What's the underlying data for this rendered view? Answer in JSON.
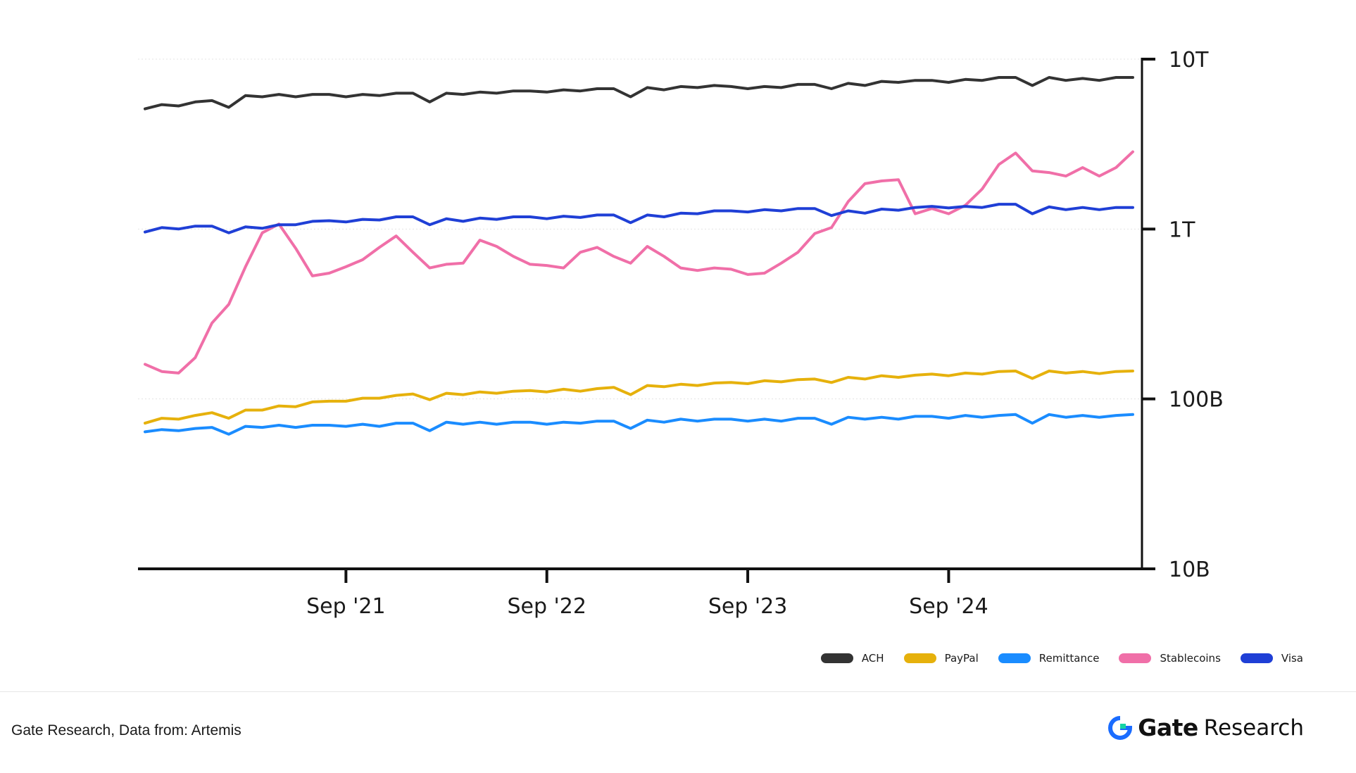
{
  "chart_data": {
    "type": "line",
    "title": "",
    "xlabel": "",
    "ylabel": "",
    "y_scale": "log",
    "y_axis_position": "right",
    "ylim": [
      10000000000,
      10000000000000
    ],
    "yticks": [
      {
        "value": 10000000000000,
        "label": "10T"
      },
      {
        "value": 1000000000000,
        "label": "1T"
      },
      {
        "value": 100000000000,
        "label": "100B"
      },
      {
        "value": 10000000000,
        "label": "10B"
      }
    ],
    "xlim": [
      "2020-09",
      "2025-09"
    ],
    "xticks": [
      {
        "value": "2021-09",
        "label": "Sep '21"
      },
      {
        "value": "2022-09",
        "label": "Sep '22"
      },
      {
        "value": "2023-09",
        "label": "Sep '23"
      },
      {
        "value": "2024-09",
        "label": "Sep '24"
      }
    ],
    "grid": "horizontal dotted",
    "legend_position": "bottom-right",
    "x": [
      "2020-09",
      "2020-10",
      "2020-11",
      "2020-12",
      "2021-01",
      "2021-02",
      "2021-03",
      "2021-04",
      "2021-05",
      "2021-06",
      "2021-07",
      "2021-08",
      "2021-09",
      "2021-10",
      "2021-11",
      "2021-12",
      "2022-01",
      "2022-02",
      "2022-03",
      "2022-04",
      "2022-05",
      "2022-06",
      "2022-07",
      "2022-08",
      "2022-09",
      "2022-10",
      "2022-11",
      "2022-12",
      "2023-01",
      "2023-02",
      "2023-03",
      "2023-04",
      "2023-05",
      "2023-06",
      "2023-07",
      "2023-08",
      "2023-09",
      "2023-10",
      "2023-11",
      "2023-12",
      "2024-01",
      "2024-02",
      "2024-03",
      "2024-04",
      "2024-05",
      "2024-06",
      "2024-07",
      "2024-08",
      "2024-09",
      "2024-10",
      "2024-11",
      "2024-12",
      "2025-01",
      "2025-02",
      "2025-03",
      "2025-04",
      "2025-05",
      "2025-06",
      "2025-07",
      "2025-08"
    ],
    "series": [
      {
        "name": "ACH",
        "color": "#333333",
        "values": [
          5100000000000.0,
          5400000000000.0,
          5300000000000.0,
          5600000000000.0,
          5700000000000.0,
          5200000000000.0,
          6100000000000.0,
          6000000000000.0,
          6200000000000.0,
          6000000000000.0,
          6200000000000.0,
          6200000000000.0,
          6000000000000.0,
          6200000000000.0,
          6100000000000.0,
          6300000000000.0,
          6300000000000.0,
          5600000000000.0,
          6300000000000.0,
          6200000000000.0,
          6400000000000.0,
          6300000000000.0,
          6500000000000.0,
          6500000000000.0,
          6400000000000.0,
          6600000000000.0,
          6500000000000.0,
          6700000000000.0,
          6700000000000.0,
          6000000000000.0,
          6800000000000.0,
          6600000000000.0,
          6900000000000.0,
          6800000000000.0,
          7000000000000.0,
          6900000000000.0,
          6700000000000.0,
          6900000000000.0,
          6800000000000.0,
          7100000000000.0,
          7100000000000.0,
          6700000000000.0,
          7200000000000.0,
          7000000000000.0,
          7400000000000.0,
          7300000000000.0,
          7500000000000.0,
          7500000000000.0,
          7300000000000.0,
          7600000000000.0,
          7500000000000.0,
          7800000000000.0,
          7800000000000.0,
          7000000000000.0,
          7800000000000.0,
          7500000000000.0,
          7700000000000.0,
          7500000000000.0,
          7800000000000.0,
          7800000000000.0
        ]
      },
      {
        "name": "PayPal",
        "color": "#e6b10c",
        "values": [
          72000000000.0,
          77000000000.0,
          76000000000.0,
          80000000000.0,
          83000000000.0,
          77000000000.0,
          86000000000.0,
          86000000000.0,
          91000000000.0,
          90000000000.0,
          96000000000.0,
          97000000000.0,
          97000000000.0,
          101000000000.0,
          101000000000.0,
          105000000000.0,
          107000000000.0,
          99000000000.0,
          108000000000.0,
          106000000000.0,
          110000000000.0,
          108000000000.0,
          111000000000.0,
          112000000000.0,
          110000000000.0,
          114000000000.0,
          111000000000.0,
          115000000000.0,
          117000000000.0,
          106000000000.0,
          120000000000.0,
          118000000000.0,
          122000000000.0,
          120000000000.0,
          124000000000.0,
          125000000000.0,
          123000000000.0,
          128000000000.0,
          126000000000.0,
          130000000000.0,
          131000000000.0,
          125000000000.0,
          134000000000.0,
          131000000000.0,
          137000000000.0,
          134000000000.0,
          138000000000.0,
          140000000000.0,
          137000000000.0,
          142000000000.0,
          140000000000.0,
          145000000000.0,
          146000000000.0,
          132000000000.0,
          146000000000.0,
          142000000000.0,
          145000000000.0,
          141000000000.0,
          145000000000.0,
          146000000000.0
        ]
      },
      {
        "name": "Remittance",
        "color": "#1a8cff",
        "values": [
          64000000000.0,
          66000000000.0,
          65000000000.0,
          67000000000.0,
          68000000000.0,
          62000000000.0,
          69000000000.0,
          68000000000.0,
          70000000000.0,
          68000000000.0,
          70000000000.0,
          70000000000.0,
          69000000000.0,
          71000000000.0,
          69000000000.0,
          72000000000.0,
          72000000000.0,
          65000000000.0,
          73000000000.0,
          71000000000.0,
          73000000000.0,
          71000000000.0,
          73000000000.0,
          73000000000.0,
          71000000000.0,
          73000000000.0,
          72000000000.0,
          74000000000.0,
          74000000000.0,
          67000000000.0,
          75000000000.0,
          73000000000.0,
          76000000000.0,
          74000000000.0,
          76000000000.0,
          76000000000.0,
          74000000000.0,
          76000000000.0,
          74000000000.0,
          77000000000.0,
          77000000000.0,
          71000000000.0,
          78000000000.0,
          76000000000.0,
          78000000000.0,
          76000000000.0,
          79000000000.0,
          79000000000.0,
          77000000000.0,
          80000000000.0,
          78000000000.0,
          80000000000.0,
          81000000000.0,
          72000000000.0,
          81000000000.0,
          78000000000.0,
          80000000000.0,
          78000000000.0,
          80000000000.0,
          81000000000.0
        ]
      },
      {
        "name": "Stablecoins",
        "color": "#f06fa8",
        "values": [
          160000000000.0,
          145000000000.0,
          142000000000.0,
          175000000000.0,
          280000000000.0,
          360000000000.0,
          600000000000.0,
          950000000000.0,
          1070000000000.0,
          770000000000.0,
          530000000000.0,
          550000000000.0,
          600000000000.0,
          660000000000.0,
          780000000000.0,
          910000000000.0,
          730000000000.0,
          590000000000.0,
          620000000000.0,
          630000000000.0,
          860000000000.0,
          790000000000.0,
          690000000000.0,
          620000000000.0,
          610000000000.0,
          590000000000.0,
          730000000000.0,
          780000000000.0,
          690000000000.0,
          630000000000.0,
          790000000000.0,
          690000000000.0,
          590000000000.0,
          570000000000.0,
          590000000000.0,
          580000000000.0,
          540000000000.0,
          550000000000.0,
          630000000000.0,
          730000000000.0,
          940000000000.0,
          1020000000000.0,
          1450000000000.0,
          1850000000000.0,
          1920000000000.0,
          1950000000000.0,
          1230000000000.0,
          1320000000000.0,
          1230000000000.0,
          1380000000000.0,
          1720000000000.0,
          2400000000000.0,
          2800000000000.0,
          2200000000000.0,
          2150000000000.0,
          2050000000000.0,
          2300000000000.0,
          2050000000000.0,
          2300000000000.0,
          2850000000000.0
        ]
      },
      {
        "name": "Visa",
        "color": "#1f3fd6",
        "values": [
          960000000000.0,
          1020000000000.0,
          1000000000000.0,
          1040000000000.0,
          1040000000000.0,
          950000000000.0,
          1030000000000.0,
          1010000000000.0,
          1060000000000.0,
          1060000000000.0,
          1110000000000.0,
          1120000000000.0,
          1100000000000.0,
          1140000000000.0,
          1130000000000.0,
          1180000000000.0,
          1180000000000.0,
          1060000000000.0,
          1150000000000.0,
          1110000000000.0,
          1160000000000.0,
          1140000000000.0,
          1180000000000.0,
          1180000000000.0,
          1150000000000.0,
          1190000000000.0,
          1170000000000.0,
          1210000000000.0,
          1210000000000.0,
          1090000000000.0,
          1210000000000.0,
          1180000000000.0,
          1240000000000.0,
          1230000000000.0,
          1280000000000.0,
          1280000000000.0,
          1260000000000.0,
          1300000000000.0,
          1280000000000.0,
          1320000000000.0,
          1320000000000.0,
          1200000000000.0,
          1280000000000.0,
          1240000000000.0,
          1310000000000.0,
          1290000000000.0,
          1340000000000.0,
          1360000000000.0,
          1330000000000.0,
          1360000000000.0,
          1340000000000.0,
          1400000000000.0,
          1400000000000.0,
          1230000000000.0,
          1350000000000.0,
          1300000000000.0,
          1340000000000.0,
          1300000000000.0,
          1340000000000.0,
          1340000000000.0
        ]
      }
    ]
  },
  "footer": {
    "source": "Gate Research, Data from:  Artemis",
    "brand_name": "Gate",
    "brand_sub": "Research"
  }
}
